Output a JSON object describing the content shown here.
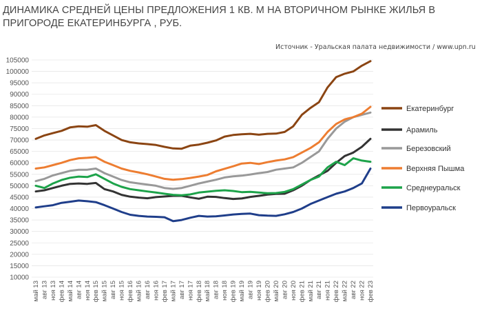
{
  "title": "ДИНАМИКА СРЕДНЕЙ ЦЕНЫ ПРЕДЛОЖЕНИЯ 1 КВ. М НА ВТОРИЧНОМ РЫНКЕ ЖИЛЬЯ В ПРИГОРОДЕ ЕКАТЕРИНБУРГА , РУБ.",
  "source": "Источник - Уральская палата недвижимости / www.upn.ru",
  "chart_data": {
    "type": "line",
    "title": "ДИНАМИКА СРЕДНЕЙ ЦЕНЫ ПРЕДЛОЖЕНИЯ 1 КВ. М НА ВТОРИЧНОМ РЫНКЕ ЖИЛЬЯ В ПРИГОРОДЕ ЕКАТЕРИНБУРГА , РУБ.",
    "xlabel": "",
    "ylabel": "",
    "ylim": [
      10000,
      105000
    ],
    "yticks": [
      "105000",
      "100000",
      "95000",
      "90000",
      "85000",
      "80000",
      "75000",
      "70000",
      "65000",
      "60000",
      "55000",
      "50000",
      "45000",
      "40000",
      "35000",
      "30000",
      "25000",
      "20000",
      "15000",
      "10000"
    ],
    "x": [
      "май 13",
      "авг 13",
      "ноя 13",
      "фев 14",
      "май 14",
      "авг 14",
      "ноя 14",
      "фев 15",
      "май 15",
      "авг 15",
      "ноя 15",
      "фев 16",
      "май 16",
      "авг 16",
      "ноя 16",
      "фев 17",
      "май 17",
      "авг 17",
      "ноя 17",
      "фев 18",
      "май 18",
      "авг 18",
      "ноя 18",
      "фев 19",
      "май 19",
      "авг 19",
      "ноя 19",
      "фев 20",
      "май 20",
      "авг 20",
      "ноя 20",
      "фев 21",
      "май 21",
      "авг 21",
      "ноя 21",
      "фев 22",
      "май 22",
      "авг 22",
      "ноя 22",
      "фев 23"
    ],
    "legend_position": "right",
    "series": [
      {
        "name": "Екатеринбург",
        "color": "#8B4513",
        "values": [
          70500,
          72000,
          73000,
          74000,
          75500,
          76000,
          75800,
          76500,
          74000,
          72000,
          70000,
          69000,
          68500,
          68200,
          67800,
          67000,
          66300,
          66200,
          67500,
          68000,
          68800,
          69800,
          71500,
          72200,
          72500,
          72700,
          72300,
          72700,
          72800,
          73500,
          76000,
          81000,
          84000,
          86500,
          93000,
          97500,
          99000,
          100000,
          102500,
          104500
        ]
      },
      {
        "name": "Арамиль",
        "color": "#333333",
        "values": [
          47500,
          48000,
          49000,
          50000,
          50800,
          51000,
          50800,
          51200,
          48500,
          47500,
          46000,
          45200,
          44800,
          44500,
          45000,
          45300,
          45600,
          45600,
          44900,
          44300,
          45200,
          45100,
          44600,
          44200,
          44400,
          45100,
          45600,
          46100,
          46400,
          46500,
          48000,
          50000,
          52500,
          54500,
          56500,
          60000,
          63000,
          64500,
          67000,
          70500
        ]
      },
      {
        "name": "Березовский",
        "color": "#999999",
        "values": [
          52000,
          53000,
          54500,
          55500,
          56500,
          57000,
          57000,
          57500,
          55500,
          54000,
          52500,
          51500,
          51000,
          50500,
          50000,
          49000,
          48600,
          49000,
          50000,
          51000,
          51800,
          52600,
          53600,
          54100,
          54400,
          54900,
          55500,
          56000,
          57000,
          57500,
          58000,
          60000,
          62500,
          65000,
          70500,
          75000,
          78000,
          80000,
          81000,
          82000
        ]
      },
      {
        "name": "Верхняя Пышма",
        "color": "#ED7D31",
        "values": [
          57500,
          58000,
          59000,
          60000,
          61200,
          62000,
          62200,
          62500,
          60500,
          59000,
          57500,
          56500,
          55800,
          55000,
          54000,
          53000,
          52600,
          52900,
          53400,
          54000,
          54700,
          56300,
          57400,
          58500,
          59700,
          60000,
          59500,
          60300,
          61000,
          61500,
          62500,
          64500,
          66500,
          69000,
          73500,
          77000,
          79000,
          80000,
          81500,
          84500
        ]
      },
      {
        "name": "Среднеуральск",
        "color": "#1DA34A",
        "values": [
          50000,
          49000,
          51000,
          52500,
          53500,
          54000,
          53800,
          55000,
          53000,
          51000,
          49500,
          48500,
          48000,
          47500,
          47000,
          46500,
          46000,
          45800,
          46200,
          47000,
          47400,
          47800,
          48000,
          47700,
          47200,
          47300,
          47000,
          46700,
          46800,
          47300,
          48500,
          50500,
          52500,
          54000,
          58000,
          60500,
          59000,
          62000,
          61000,
          60500
        ]
      },
      {
        "name": "Первоуральск",
        "color": "#1F3E8A",
        "values": [
          40500,
          41000,
          41500,
          42500,
          43000,
          43500,
          43200,
          42800,
          41500,
          40000,
          38500,
          37300,
          36800,
          36500,
          36400,
          36200,
          34500,
          35000,
          36000,
          36800,
          36500,
          36600,
          37000,
          37400,
          37700,
          37800,
          37100,
          36900,
          36800,
          37500,
          38500,
          40000,
          42000,
          43500,
          45000,
          46500,
          47500,
          49000,
          51000,
          57500
        ]
      }
    ]
  }
}
